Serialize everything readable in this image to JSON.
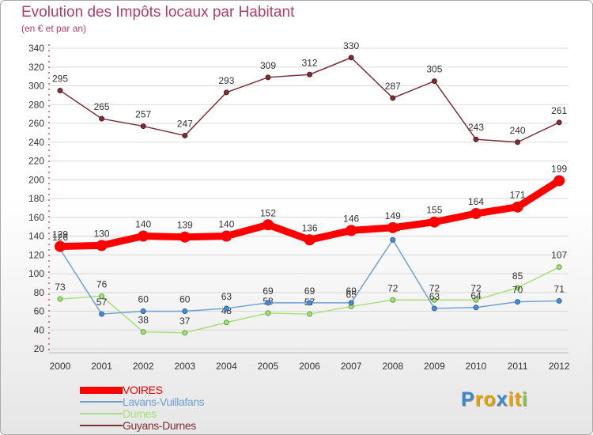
{
  "chart_data": {
    "type": "line",
    "title": "Evolution des Impôts locaux par Habitant",
    "subtitle": "(en € et par an)",
    "xlabel": "",
    "ylabel": "",
    "ylim": [
      20,
      340
    ],
    "yticks": [
      20,
      40,
      60,
      80,
      100,
      120,
      140,
      160,
      180,
      200,
      220,
      240,
      260,
      280,
      300,
      320,
      340
    ],
    "categories": [
      "2000",
      "2001",
      "2002",
      "2003",
      "2004",
      "2005",
      "2006",
      "2007",
      "2008",
      "2009",
      "2010",
      "2011",
      "2012"
    ],
    "series": [
      {
        "name": "Guyans-Durnes",
        "color": "#7a2e36",
        "values": [
          295,
          265,
          257,
          247,
          293,
          309,
          312,
          330,
          287,
          305,
          243,
          240,
          261
        ]
      },
      {
        "name": "Durnes",
        "color": "#a6e07a",
        "values": [
          73,
          76,
          38,
          37,
          48,
          58,
          57,
          65,
          72,
          72,
          72,
          85,
          107
        ]
      },
      {
        "name": "Lavans-Vuillafans",
        "color": "#6fa0cf",
        "values": [
          126,
          57,
          60,
          60,
          63,
          69,
          69,
          69,
          136,
          63,
          64,
          70,
          71
        ]
      },
      {
        "name": "VOIRES",
        "color": "#ff0000",
        "values": [
          129,
          130,
          140,
          139,
          140,
          152,
          136,
          146,
          149,
          155,
          164,
          171,
          199
        ]
      }
    ],
    "legend_order": [
      "VOIRES",
      "Lavans-Vuillafans",
      "Durnes",
      "Guyans-Durnes"
    ],
    "legend_position": "bottom-left",
    "grid": true
  },
  "logo": {
    "text": "Proxiti",
    "letters": [
      "P",
      "r",
      "o",
      "x",
      "i",
      "t",
      "i"
    ],
    "colors": [
      "#3b88c6",
      "#e8a200",
      "#e8a200",
      "#3b88c6",
      "#e8a200",
      "#e8a200",
      "#8ac43f"
    ]
  }
}
